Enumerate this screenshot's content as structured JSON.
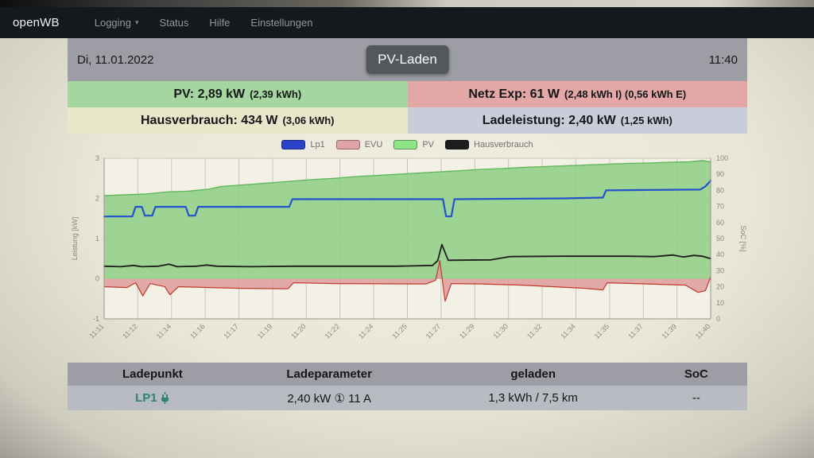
{
  "navbar": {
    "brand": "openWB",
    "items": [
      {
        "label": "Logging",
        "caret": "▾"
      },
      {
        "label": "Status"
      },
      {
        "label": "Hilfe"
      },
      {
        "label": "Einstellungen"
      }
    ]
  },
  "header": {
    "date": "Di, 11.01.2022",
    "mode_button": "PV-Laden",
    "time": "11:40",
    "bar_color": "#9d9da5"
  },
  "status_rows": {
    "pv": {
      "main": "PV: 2,89 kW",
      "detail": "(2,39 kWh)",
      "bg": "#a6d69f"
    },
    "netz": {
      "main": "Netz Exp: 61 W",
      "detail": "(2,48 kWh I) (0,56 kWh E)",
      "bg": "#e3a8a6"
    },
    "haus": {
      "main": "Hausverbrauch: 434 W",
      "detail": "(3,06 kWh)",
      "bg": "#e9e7ca"
    },
    "lade": {
      "main": "Ladeleistung: 2,40 kW",
      "detail": "(1,25 kWh)",
      "bg": "#c8cdd9"
    }
  },
  "chart_data": {
    "type": "line",
    "title": "",
    "xlabel": "",
    "ylabel": "Leistung [kW]",
    "y2label": "SoC [%]",
    "ylim": [
      -1,
      3
    ],
    "y2lim": [
      0,
      100
    ],
    "y2ticks": [
      0,
      10,
      20,
      30,
      40,
      50,
      60,
      70,
      80,
      90,
      100
    ],
    "yticks": [
      -1,
      0,
      1,
      2,
      3
    ],
    "x_minutes_span": 29,
    "x_ticks": [
      "11:11",
      "11:12",
      "11:14",
      "11:16",
      "11:17",
      "11:19",
      "11:20",
      "11:22",
      "11:24",
      "11:25",
      "11:27",
      "11:29",
      "11:30",
      "11:32",
      "11:34",
      "11:35",
      "11:37",
      "11:39",
      "11:40"
    ],
    "grid": true,
    "legend_position": "top",
    "series": [
      {
        "name": "Lp1",
        "type": "line",
        "color": "#2353cb",
        "swatch": "#2b43c8",
        "width": 2.2,
        "points": [
          [
            0,
            1.55
          ],
          [
            1.35,
            1.55
          ],
          [
            1.5,
            1.79
          ],
          [
            1.8,
            1.79
          ],
          [
            1.95,
            1.57
          ],
          [
            2.3,
            1.57
          ],
          [
            2.45,
            1.79
          ],
          [
            3.9,
            1.79
          ],
          [
            4.05,
            1.57
          ],
          [
            4.35,
            1.57
          ],
          [
            4.5,
            1.79
          ],
          [
            8.85,
            1.79
          ],
          [
            9.0,
            1.98
          ],
          [
            16.2,
            1.98
          ],
          [
            16.35,
            1.55
          ],
          [
            16.6,
            1.55
          ],
          [
            16.75,
            1.98
          ],
          [
            22.0,
            2.0
          ],
          [
            23.85,
            2.02
          ],
          [
            24.0,
            2.2
          ],
          [
            26.0,
            2.21
          ],
          [
            28.5,
            2.22
          ],
          [
            28.75,
            2.3
          ],
          [
            29,
            2.44
          ]
        ]
      },
      {
        "name": "EVU",
        "type": "area",
        "color": "#c0392b",
        "swatch": "#dfa3a8",
        "fill": "#dd9e9e",
        "fill_opacity": 0.85,
        "width": 1.2,
        "points": [
          [
            0,
            -0.2
          ],
          [
            1.1,
            -0.22
          ],
          [
            1.5,
            -0.1
          ],
          [
            1.85,
            -0.43
          ],
          [
            2.2,
            -0.12
          ],
          [
            2.9,
            -0.2
          ],
          [
            3.15,
            -0.4
          ],
          [
            3.55,
            -0.2
          ],
          [
            5,
            -0.22
          ],
          [
            6.5,
            -0.24
          ],
          [
            8.8,
            -0.25
          ],
          [
            9.05,
            -0.1
          ],
          [
            11,
            -0.12
          ],
          [
            15.4,
            -0.13
          ],
          [
            15.85,
            -0.04
          ],
          [
            16.05,
            0.45
          ],
          [
            16.3,
            -0.56
          ],
          [
            16.6,
            -0.12
          ],
          [
            18,
            -0.13
          ],
          [
            20,
            -0.16
          ],
          [
            23,
            -0.24
          ],
          [
            23.85,
            -0.28
          ],
          [
            24.05,
            -0.1
          ],
          [
            26,
            -0.13
          ],
          [
            27.8,
            -0.16
          ],
          [
            28.4,
            -0.34
          ],
          [
            28.75,
            -0.3
          ],
          [
            29,
            0.05
          ]
        ]
      },
      {
        "name": "PV",
        "type": "area",
        "color": "#63b85c",
        "swatch": "#8ee487",
        "fill": "#93cf8a",
        "fill_opacity": 0.9,
        "width": 1.4,
        "points": [
          [
            0,
            2.07
          ],
          [
            1,
            2.09
          ],
          [
            2,
            2.11
          ],
          [
            3,
            2.16
          ],
          [
            4,
            2.18
          ],
          [
            5,
            2.23
          ],
          [
            5.6,
            2.3
          ],
          [
            6.5,
            2.33
          ],
          [
            8,
            2.39
          ],
          [
            9,
            2.43
          ],
          [
            10,
            2.47
          ],
          [
            11,
            2.5
          ],
          [
            12,
            2.54
          ],
          [
            13,
            2.57
          ],
          [
            14,
            2.6
          ],
          [
            15,
            2.63
          ],
          [
            16,
            2.66
          ],
          [
            17,
            2.69
          ],
          [
            18,
            2.72
          ],
          [
            19,
            2.74
          ],
          [
            20,
            2.77
          ],
          [
            21,
            2.79
          ],
          [
            22,
            2.81
          ],
          [
            23,
            2.83
          ],
          [
            24,
            2.85
          ],
          [
            25,
            2.87
          ],
          [
            26,
            2.88
          ],
          [
            27,
            2.9
          ],
          [
            28,
            2.91
          ],
          [
            28.6,
            2.94
          ],
          [
            29,
            2.91
          ]
        ]
      },
      {
        "name": "Hausverbrauch",
        "type": "line",
        "color": "#1d1d1d",
        "swatch": "#1d1d1d",
        "width": 1.8,
        "points": [
          [
            0,
            0.31
          ],
          [
            0.8,
            0.3
          ],
          [
            1.4,
            0.33
          ],
          [
            1.8,
            0.3
          ],
          [
            2.6,
            0.31
          ],
          [
            3.1,
            0.36
          ],
          [
            3.5,
            0.3
          ],
          [
            4.4,
            0.31
          ],
          [
            4.9,
            0.34
          ],
          [
            5.4,
            0.31
          ],
          [
            7,
            0.3
          ],
          [
            9,
            0.31
          ],
          [
            12,
            0.31
          ],
          [
            14,
            0.31
          ],
          [
            15.7,
            0.33
          ],
          [
            15.95,
            0.45
          ],
          [
            16.15,
            0.85
          ],
          [
            16.45,
            0.46
          ],
          [
            18.5,
            0.47
          ],
          [
            19.4,
            0.55
          ],
          [
            22,
            0.56
          ],
          [
            25,
            0.56
          ],
          [
            26.3,
            0.55
          ],
          [
            27.2,
            0.59
          ],
          [
            27.7,
            0.54
          ],
          [
            28.2,
            0.58
          ],
          [
            28.6,
            0.56
          ],
          [
            29,
            0.5
          ]
        ]
      }
    ],
    "colors": {
      "grid": "#c7c5bb",
      "axis": "#97958c",
      "tick_text": "#8a887f",
      "plot_bg": "#f3f0e6"
    }
  },
  "table": {
    "header_bg": "#9d9da5",
    "row_bg": "#b8bbc2",
    "headers": [
      "Ladepunkt",
      "Ladeparameter",
      "geladen",
      "SoC"
    ],
    "row": {
      "ladepunkt": "LP1",
      "plug_icon": "plug-connected",
      "ladeparameter": "2,40 kW ① 11 A",
      "geladen": "1,3 kWh / 7,5 km",
      "soc": "--"
    }
  }
}
